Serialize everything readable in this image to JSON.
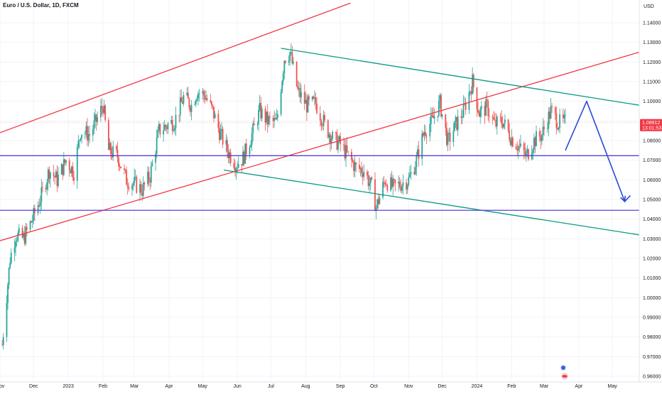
{
  "header": {
    "title": "Euro / U.S. Dollar, 1D, FXCM"
  },
  "currency": "USD",
  "price_badge": {
    "price": "1.08912",
    "countdown": "13:01:53",
    "color": "#f23645"
  },
  "colors": {
    "up": "#26a69a",
    "down": "#ef5350",
    "red_channel": "#f23645",
    "green_channel": "#089981",
    "support": "#5b3fd6",
    "projection": "#2a4bd4"
  },
  "chart_data": {
    "type": "candlestick",
    "title": "Euro / U.S. Dollar, 1D, FXCM",
    "ylim": [
      0.9562,
      1.1453
    ],
    "y_ticks": [
      "1.14000",
      "1.13000",
      "1.12000",
      "1.11000",
      "1.10000",
      "1.09000",
      "1.08000",
      "1.07000",
      "1.06000",
      "1.05000",
      "1.04000",
      "1.03000",
      "1.02000",
      "1.01000",
      "1.00000",
      "0.99000",
      "0.98000",
      "0.97000",
      "0.96000"
    ],
    "xlim": [
      "2022-11-01",
      "2024-05-25"
    ],
    "x_ticks": [
      {
        "date": "2022-11-01",
        "label": "Nov"
      },
      {
        "date": "2022-12-01",
        "label": "Dec"
      },
      {
        "date": "2023-01-01",
        "label": "2023"
      },
      {
        "date": "2023-02-01",
        "label": "Feb"
      },
      {
        "date": "2023-03-01",
        "label": "Mar"
      },
      {
        "date": "2023-04-01",
        "label": "Apr"
      },
      {
        "date": "2023-05-01",
        "label": "May"
      },
      {
        "date": "2023-06-01",
        "label": "Jun"
      },
      {
        "date": "2023-07-01",
        "label": "Jul"
      },
      {
        "date": "2023-08-01",
        "label": "Aug"
      },
      {
        "date": "2023-09-01",
        "label": "Sep"
      },
      {
        "date": "2023-10-01",
        "label": "Oct"
      },
      {
        "date": "2023-11-01",
        "label": "Nov"
      },
      {
        "date": "2023-12-01",
        "label": "Dec"
      },
      {
        "date": "2024-01-01",
        "label": "2024"
      },
      {
        "date": "2024-02-01",
        "label": "Feb"
      },
      {
        "date": "2024-03-01",
        "label": "Mar"
      },
      {
        "date": "2024-04-01",
        "label": "Apr"
      },
      {
        "date": "2024-05-01",
        "label": "May"
      }
    ],
    "close_path": [
      [
        "2022-11-03",
        0.976
      ],
      [
        "2022-11-10",
        1.02
      ],
      [
        "2022-11-15",
        1.032
      ],
      [
        "2022-11-22",
        1.03
      ],
      [
        "2022-11-30",
        1.04
      ],
      [
        "2022-12-08",
        1.052
      ],
      [
        "2022-12-15",
        1.065
      ],
      [
        "2022-12-22",
        1.06
      ],
      [
        "2022-12-30",
        1.07
      ],
      [
        "2023-01-06",
        1.064
      ],
      [
        "2023-01-12",
        1.085
      ],
      [
        "2023-01-20",
        1.083
      ],
      [
        "2023-01-26",
        1.09
      ],
      [
        "2023-02-01",
        1.098
      ],
      [
        "2023-02-06",
        1.075
      ],
      [
        "2023-02-14",
        1.072
      ],
      [
        "2023-02-22",
        1.06
      ],
      [
        "2023-03-01",
        1.058
      ],
      [
        "2023-03-08",
        1.055
      ],
      [
        "2023-03-15",
        1.062
      ],
      [
        "2023-03-23",
        1.085
      ],
      [
        "2023-03-31",
        1.088
      ],
      [
        "2023-04-06",
        1.09
      ],
      [
        "2023-04-14",
        1.102
      ],
      [
        "2023-04-21",
        1.098
      ],
      [
        "2023-04-26",
        1.105
      ],
      [
        "2023-05-03",
        1.103
      ],
      [
        "2023-05-10",
        1.095
      ],
      [
        "2023-05-17",
        1.083
      ],
      [
        "2023-05-24",
        1.074
      ],
      [
        "2023-05-31",
        1.068
      ],
      [
        "2023-06-06",
        1.071
      ],
      [
        "2023-06-14",
        1.083
      ],
      [
        "2023-06-21",
        1.095
      ],
      [
        "2023-06-28",
        1.09
      ],
      [
        "2023-07-06",
        1.089
      ],
      [
        "2023-07-13",
        1.122
      ],
      [
        "2023-07-18",
        1.125
      ],
      [
        "2023-07-25",
        1.105
      ],
      [
        "2023-08-02",
        1.098
      ],
      [
        "2023-08-10",
        1.099
      ],
      [
        "2023-08-18",
        1.088
      ],
      [
        "2023-08-25",
        1.081
      ],
      [
        "2023-09-01",
        1.078
      ],
      [
        "2023-09-08",
        1.072
      ],
      [
        "2023-09-15",
        1.066
      ],
      [
        "2023-09-22",
        1.065
      ],
      [
        "2023-09-29",
        1.056
      ],
      [
        "2023-10-03",
        1.046
      ],
      [
        "2023-10-11",
        1.06
      ],
      [
        "2023-10-18",
        1.056
      ],
      [
        "2023-10-25",
        1.058
      ],
      [
        "2023-11-01",
        1.06
      ],
      [
        "2023-11-08",
        1.07
      ],
      [
        "2023-11-15",
        1.085
      ],
      [
        "2023-11-22",
        1.09
      ],
      [
        "2023-11-29",
        1.099
      ],
      [
        "2023-12-06",
        1.079
      ],
      [
        "2023-12-13",
        1.088
      ],
      [
        "2023-12-20",
        1.095
      ],
      [
        "2023-12-28",
        1.11
      ],
      [
        "2024-01-03",
        1.094
      ],
      [
        "2024-01-10",
        1.097
      ],
      [
        "2024-01-17",
        1.088
      ],
      [
        "2024-01-24",
        1.09
      ],
      [
        "2024-01-31",
        1.082
      ],
      [
        "2024-02-07",
        1.077
      ],
      [
        "2024-02-14",
        1.072
      ],
      [
        "2024-02-21",
        1.08
      ],
      [
        "2024-02-28",
        1.083
      ],
      [
        "2024-03-07",
        1.095
      ],
      [
        "2024-03-14",
        1.089
      ],
      [
        "2024-03-20",
        1.0891
      ]
    ],
    "annotations": {
      "red_upper_line": [
        [
          "2022-11-01",
          1.084
        ],
        [
          "2023-09-10",
          1.15
        ]
      ],
      "red_lower_line": [
        [
          "2022-11-01",
          1.029
        ],
        [
          "2024-05-25",
          1.125
        ]
      ],
      "green_upper_line": [
        [
          "2023-07-10",
          1.127
        ],
        [
          "2024-05-25",
          1.098
        ]
      ],
      "green_lower_line": [
        [
          "2023-05-20",
          1.065
        ],
        [
          "2024-05-25",
          1.032
        ]
      ],
      "support_upper": 1.0723,
      "support_lower": 1.0445,
      "projection_path": [
        [
          "2024-03-20",
          1.075
        ],
        [
          "2024-04-08",
          1.1
        ],
        [
          "2024-05-12",
          1.049
        ],
        [
          "2024-05-17",
          1.052
        ]
      ]
    }
  }
}
